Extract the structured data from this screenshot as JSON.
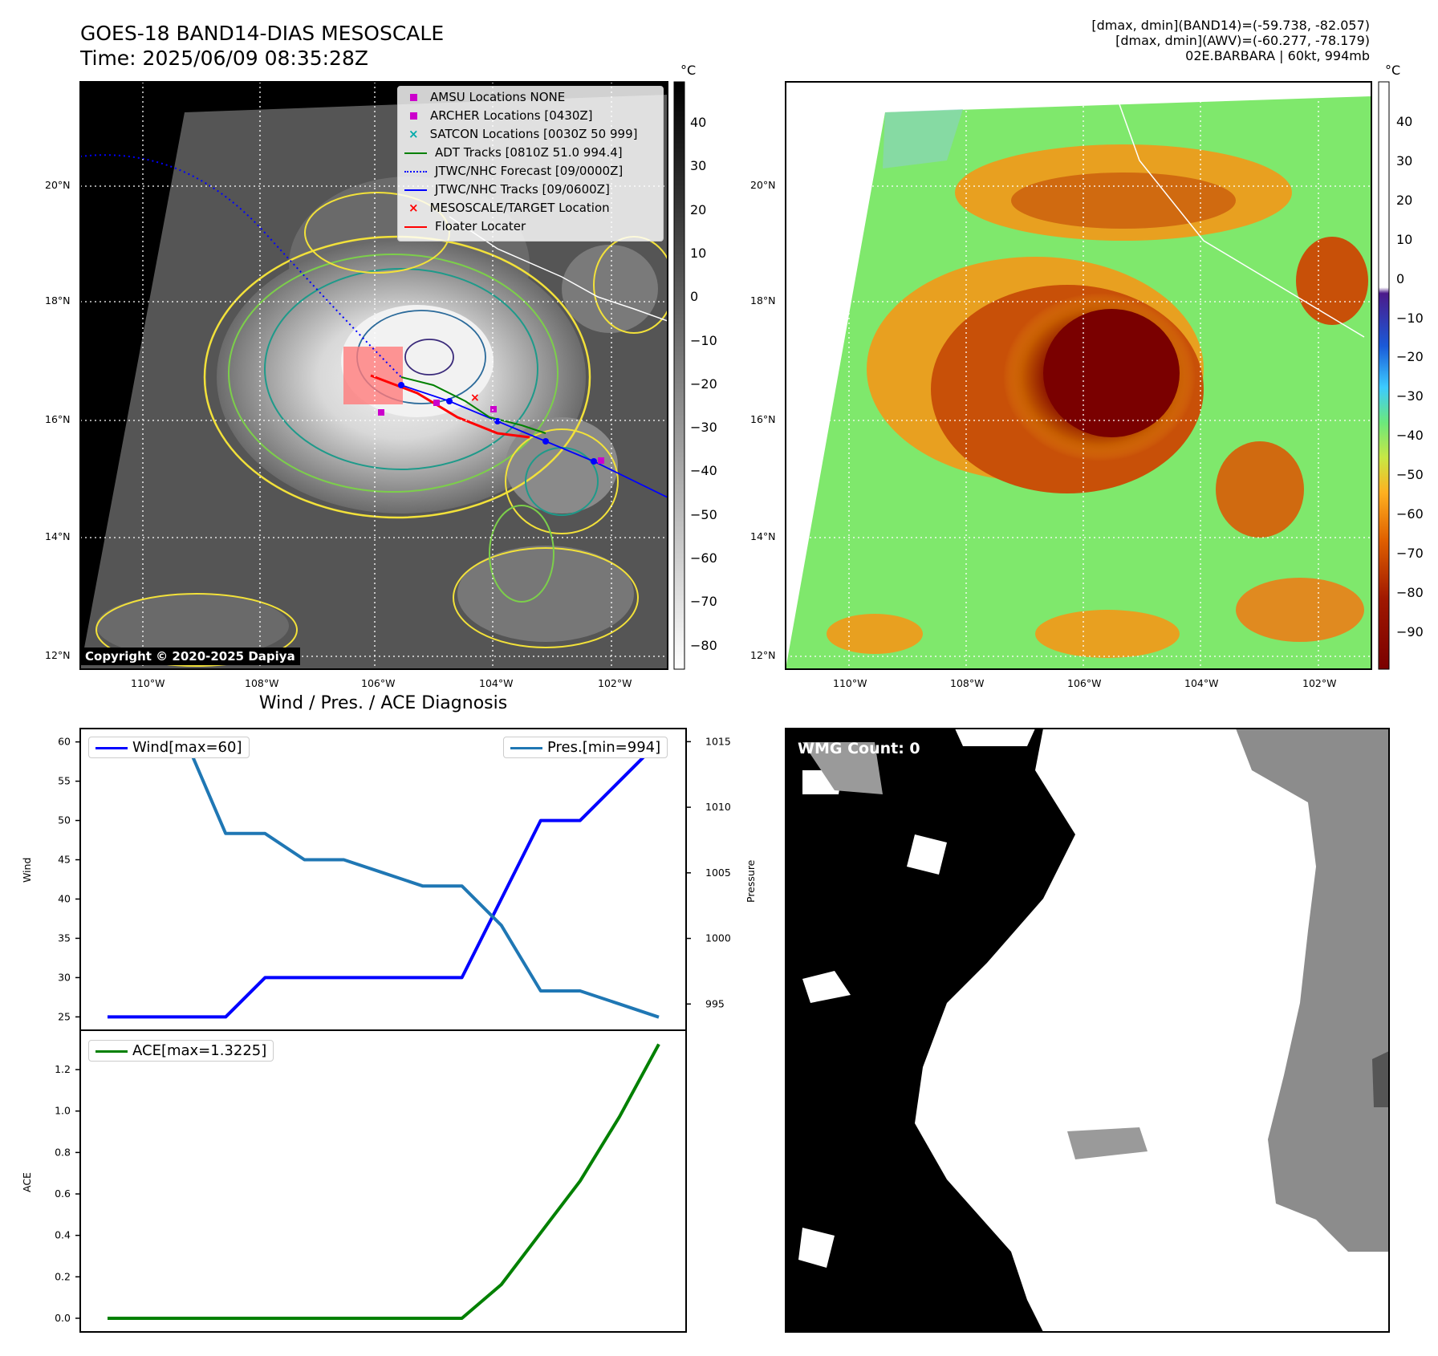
{
  "header": {
    "title_line1": "GOES-18 BAND14-DIAS MESOSCALE",
    "title_line2": "Time: 2025/06/09 08:35:28Z",
    "info_line1": "[dmax, dmin](BAND14)=(-59.738, -82.057)",
    "info_line2": "[dmax, dmin](AWV)=(-60.277, -78.179)",
    "info_line3": "02E.BARBARA | 60kt, 994mb"
  },
  "colors": {
    "wind": "#0000ff",
    "pressure": "#1f77b4",
    "ace": "#008000",
    "adt": "#008000",
    "jtwc": "#0000ff",
    "target": "#ff0000",
    "floater": "#ff0000",
    "amsu": "#cc00cc",
    "satcon": "#00aaaa"
  },
  "map_ir": {
    "unit": "°C",
    "lat_labels": [
      "20°N",
      "18°N",
      "16°N",
      "14°N",
      "12°N"
    ],
    "lon_labels": [
      "110°W",
      "108°W",
      "106°W",
      "104°W",
      "102°W"
    ],
    "colorbar_ticks": [
      "40",
      "30",
      "20",
      "10",
      "0",
      "−10",
      "−20",
      "−30",
      "−40",
      "−50",
      "−60",
      "−70",
      "−80"
    ],
    "copyright": "Copyright © 2020-2025 Dapiya",
    "legend": [
      {
        "icon": "square-marker",
        "label": "AMSU Locations NONE"
      },
      {
        "icon": "square-marker",
        "label": "ARCHER Locations [0430Z]"
      },
      {
        "icon": "x-marker",
        "label": "SATCON Locations [0030Z 50 999]"
      },
      {
        "icon": "solid-line",
        "label": "ADT Tracks [0810Z 51.0 994.4]"
      },
      {
        "icon": "dotted-line",
        "label": "JTWC/NHC Forecast [09/0000Z]"
      },
      {
        "icon": "dot-line",
        "label": "JTWC/NHC Tracks [09/0600Z]"
      },
      {
        "icon": "x-marker",
        "label": "MESOSCALE/TARGET Location"
      },
      {
        "icon": "solid-line",
        "label": "Floater Locater"
      }
    ]
  },
  "map_awv": {
    "unit": "°C",
    "lat_labels": [
      "20°N",
      "18°N",
      "16°N",
      "14°N",
      "12°N"
    ],
    "lon_labels": [
      "110°W",
      "108°W",
      "106°W",
      "104°W",
      "102°W"
    ],
    "colorbar_ticks": [
      "40",
      "30",
      "20",
      "10",
      "0",
      "−10",
      "−20",
      "−30",
      "−40",
      "−50",
      "−60",
      "−70",
      "−80",
      "−90"
    ]
  },
  "diagnosis": {
    "title": "Wind / Pres. / ACE Diagnosis",
    "wind_label": "Wind",
    "pressure_label": "Pressure",
    "ace_label": "ACE",
    "wind_legend": "Wind[max=60]",
    "pressure_legend": "Pres.[min=994]",
    "ace_legend": "ACE[max=1.3225]"
  },
  "wmg": {
    "label": "WMG Count: 0"
  },
  "chart_data": [
    {
      "type": "line",
      "x": [
        0,
        1,
        2,
        3,
        4,
        5,
        6,
        7,
        8,
        9,
        10,
        11,
        12,
        13,
        14
      ],
      "series": [
        {
          "name": "Wind[max=60]",
          "axis": "left",
          "values": [
            25,
            25,
            25,
            25,
            30,
            30,
            30,
            30,
            30,
            30,
            40,
            50,
            50,
            55,
            60
          ]
        },
        {
          "name": "Pres.[min=994]",
          "axis": "right",
          "values": [
            1015,
            1015,
            1015,
            1008,
            1008,
            1006,
            1006,
            1005,
            1004,
            1004,
            1001,
            996,
            996,
            995,
            994
          ]
        }
      ],
      "ylabel": "Wind",
      "y2label": "Pressure",
      "ylim": [
        23.3,
        61.7
      ],
      "y2lim": [
        993.0,
        1016.0
      ],
      "yticks": [
        25,
        30,
        35,
        40,
        45,
        50,
        55,
        60
      ],
      "y2ticks": [
        995,
        1000,
        1005,
        1010,
        1015
      ]
    },
    {
      "type": "line",
      "x": [
        0,
        1,
        2,
        3,
        4,
        5,
        6,
        7,
        8,
        9,
        10,
        11,
        12,
        13,
        14
      ],
      "series": [
        {
          "name": "ACE[max=1.3225]",
          "values": [
            0,
            0,
            0,
            0,
            0,
            0,
            0,
            0,
            0,
            0,
            0.1625,
            0.4125,
            0.6625,
            0.9725,
            1.3225
          ]
        }
      ],
      "ylabel": "ACE",
      "ylim": [
        -0.066,
        1.39
      ],
      "yticks": [
        0.0,
        0.2,
        0.4,
        0.6,
        0.8,
        1.0,
        1.2
      ]
    }
  ]
}
